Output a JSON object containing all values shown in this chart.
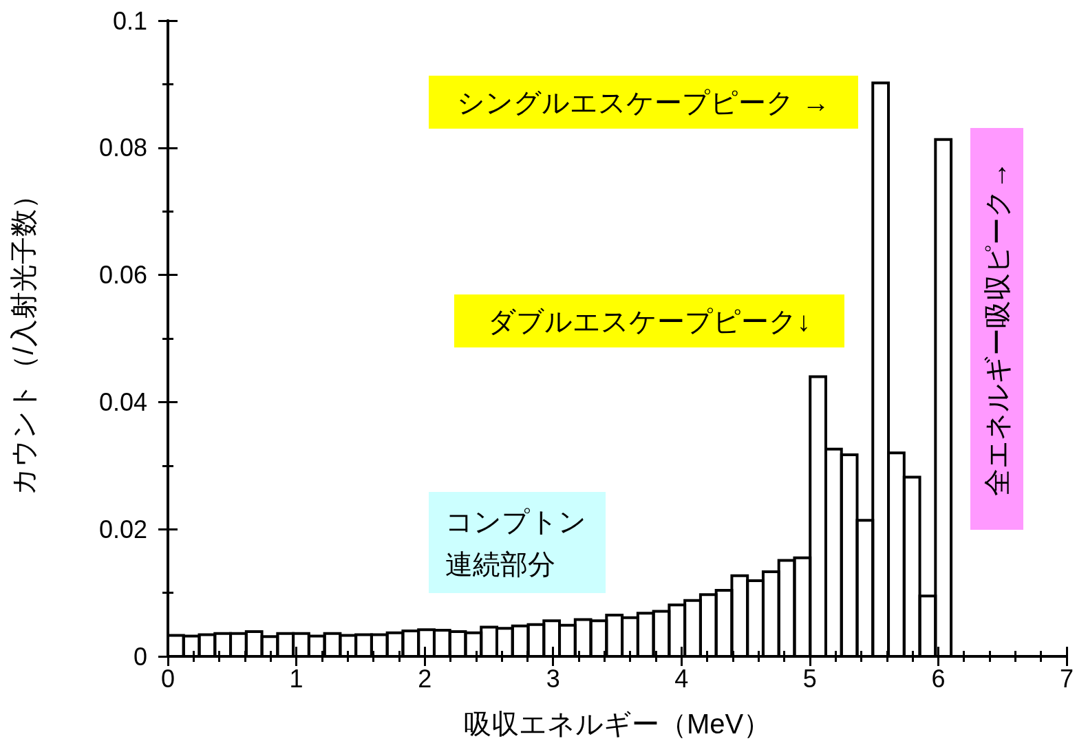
{
  "chart_data": {
    "type": "histogram",
    "xlabel": "吸収エネルギー（MeV）",
    "ylabel": "カウント（/入射光子数）",
    "bins": [
      0,
      0.122,
      0.244,
      0.366,
      0.488,
      0.61,
      0.732,
      0.854,
      0.976,
      1.098,
      1.22,
      1.342,
      1.464,
      1.586,
      1.708,
      1.83,
      1.952,
      2.074,
      2.196,
      2.318,
      2.44,
      2.562,
      2.684,
      2.806,
      2.928,
      3.05,
      3.172,
      3.294,
      3.416,
      3.538,
      3.66,
      3.782,
      3.904,
      4.026,
      4.148,
      4.27,
      4.392,
      4.514,
      4.636,
      4.758,
      4.88,
      5.002,
      5.124,
      5.246,
      5.368,
      5.49,
      5.612,
      5.734,
      5.856,
      5.978,
      6.1
    ],
    "values": [
      0.0033,
      0.0032,
      0.0034,
      0.0036,
      0.0036,
      0.0039,
      0.0031,
      0.0036,
      0.0036,
      0.0032,
      0.0036,
      0.0033,
      0.0034,
      0.0034,
      0.0037,
      0.004,
      0.0042,
      0.0041,
      0.0039,
      0.0037,
      0.0046,
      0.0044,
      0.0048,
      0.005,
      0.0056,
      0.0049,
      0.0058,
      0.0056,
      0.0065,
      0.0061,
      0.0068,
      0.0071,
      0.0081,
      0.0088,
      0.0097,
      0.0104,
      0.0127,
      0.0119,
      0.0133,
      0.0151,
      0.0155,
      0.044,
      0.0326,
      0.0317,
      0.0214,
      0.0902,
      0.032,
      0.0282,
      0.0095,
      0.0813
    ],
    "color": "#000000",
    "xlim": [
      0,
      7
    ],
    "xticks": [
      0,
      1,
      2,
      3,
      4,
      5,
      6,
      7
    ],
    "ylim": [
      0,
      0.1
    ],
    "yticks": [
      0,
      0.02,
      0.04,
      0.06,
      0.08,
      0.1
    ],
    "grid": false,
    "annotations": [
      "シングルエスケープピーク →",
      "ダブルエスケープピーク↓",
      "コンプトン連続部分",
      "全エネルギー吸収ピーク→"
    ]
  }
}
